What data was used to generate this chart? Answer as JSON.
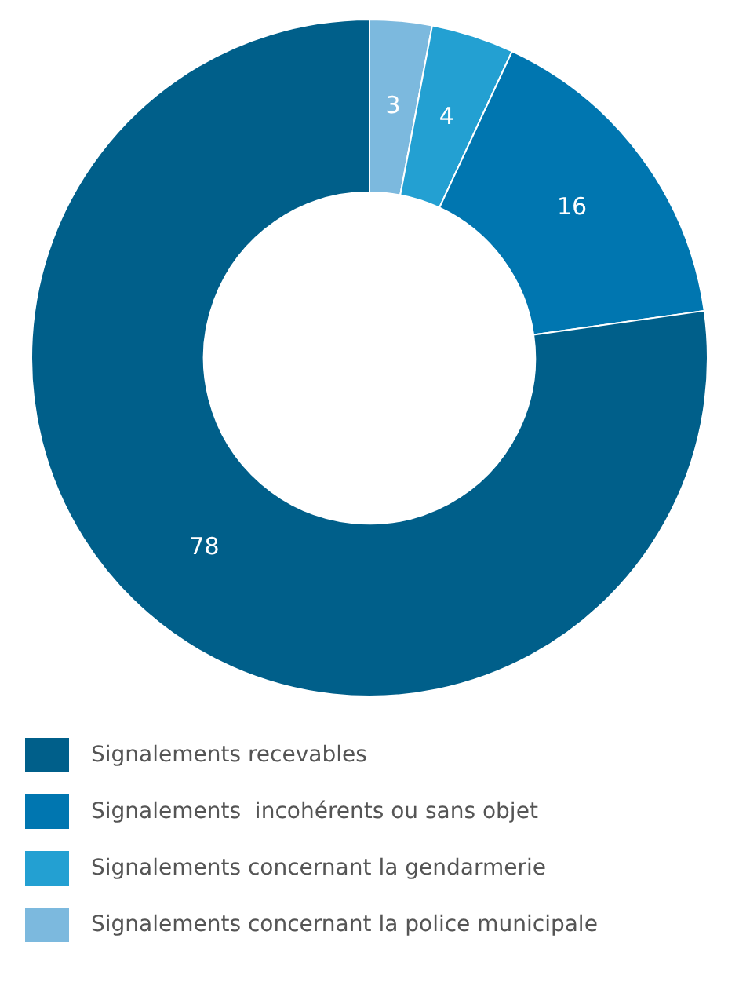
{
  "chart_data": {
    "type": "donut",
    "categories": [
      "Signalements recevables",
      "Signalements  incohérents ou sans objet",
      "Signalements concernant la gendarmerie",
      "Signalements concernant la police municipale"
    ],
    "values": [
      78,
      16,
      4,
      3
    ],
    "colors": [
      "#005f8a",
      "#0076b0",
      "#23a0d2",
      "#7cb9de"
    ],
    "data_labels": true,
    "legend": "bottom"
  }
}
